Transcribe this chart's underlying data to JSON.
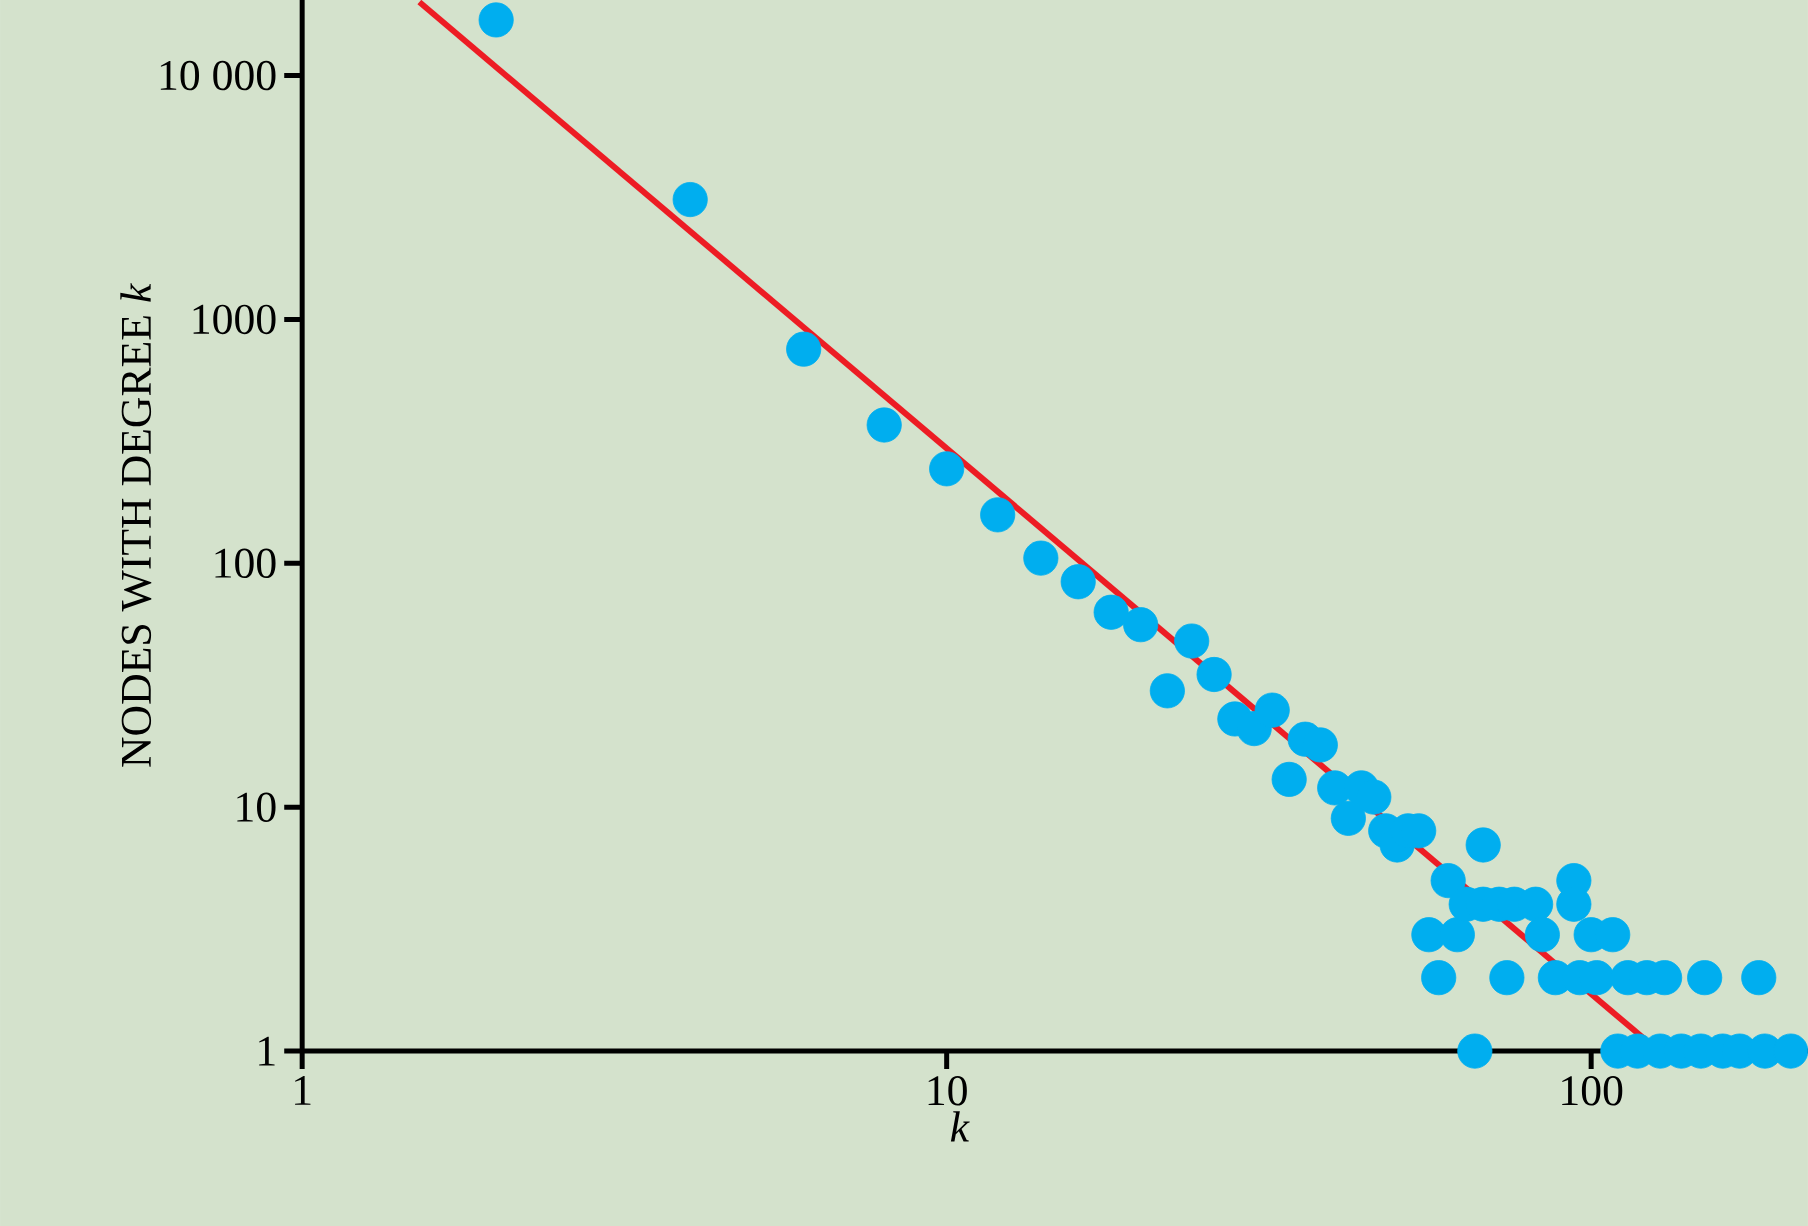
{
  "chart_data": {
    "type": "scatter",
    "xlabel": "k",
    "ylabel": "NODES WITH DEGREE *k*",
    "log": "xy",
    "xlim": [
      1,
      217
    ],
    "ylim": [
      1,
      20400
    ],
    "xticks": [
      1,
      10,
      100
    ],
    "yticks": [
      1,
      10,
      100,
      1000,
      {
        "value": 10000,
        "label": "10 000"
      }
    ],
    "grid": false,
    "series": [
      {
        "marker": "circle",
        "color": "#00aeef",
        "x": [
          2,
          4,
          6,
          8,
          10,
          12,
          14,
          16,
          18,
          20,
          22,
          24,
          26,
          28,
          30,
          32,
          34,
          36,
          38,
          40,
          42,
          44,
          46,
          48,
          50,
          52,
          54,
          56,
          58,
          60,
          62,
          64,
          66,
          68,
          68,
          72,
          74,
          76,
          82,
          84,
          88,
          94,
          94,
          96,
          100,
          102,
          108,
          110,
          114,
          118,
          122,
          128,
          130,
          138,
          148,
          150,
          160,
          170,
          182,
          186,
          204
        ],
        "values": [
          16900,
          3100,
          755,
          369,
          244,
          158,
          105,
          84,
          63,
          56,
          30,
          48,
          35,
          23,
          21,
          25,
          13,
          19,
          18,
          12,
          9,
          12,
          11,
          8,
          7,
          8,
          8,
          3,
          2,
          5,
          3,
          4,
          1,
          7,
          4,
          4,
          2,
          4,
          4,
          3,
          2,
          5,
          4,
          2,
          3,
          2,
          3,
          1,
          2,
          1,
          2,
          1,
          2,
          1,
          1,
          2,
          1,
          1,
          2,
          1,
          1
        ]
      },
      {
        "type": "line",
        "marker": "none",
        "color": "#ed1c24",
        "x": [
          1.52,
          121
        ],
        "values": [
          20000,
          1.12
        ]
      }
    ]
  }
}
